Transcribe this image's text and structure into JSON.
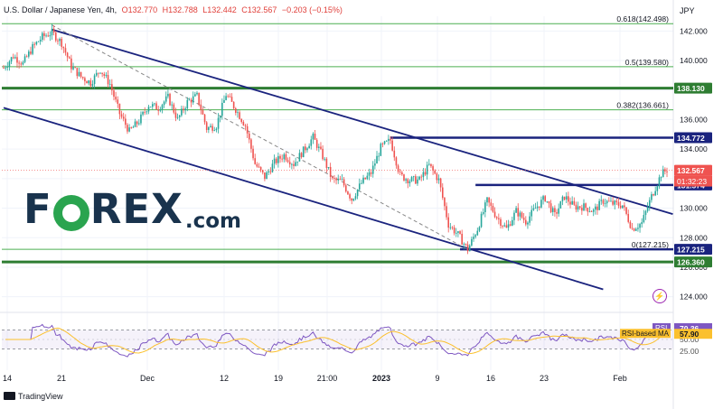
{
  "header": {
    "symbol": "U.S. Dollar / Japanese Yen, 4h,",
    "open": "O132.770",
    "high": "H132.788",
    "low": "L132.442",
    "close": "C132.567",
    "change": "−0.203 (−0.15%)"
  },
  "currency_label": "JPY",
  "logo": {
    "prefix": "F",
    "suffix": "REX",
    "domain": ".com"
  },
  "footer": {
    "brand": "TradingView"
  },
  "colors": {
    "up": "#26a69a",
    "down": "#ef5350",
    "channel": "#1a237e",
    "fib": "#4caf50",
    "rsi": "#7e57c2",
    "rsi_ma": "#fbc02d"
  },
  "chart_data": {
    "type": "candlestick",
    "symbol": "USDJPY",
    "timeframe": "4h",
    "y_axis": {
      "range": [
        123.0,
        143.0
      ],
      "ticks": [
        "142.000",
        "140.000",
        "138.000",
        "136.000",
        "134.000",
        "132.000",
        "130.000",
        "128.000",
        "126.000",
        "124.000"
      ]
    },
    "x_axis": {
      "ticks": [
        "14",
        "21",
        "Dec",
        "12",
        "19",
        "21:00",
        "2023",
        "9",
        "16",
        "23",
        "Feb"
      ]
    },
    "price_path": [
      [
        0,
        139.5
      ],
      [
        5,
        140.3
      ],
      [
        10,
        139.8
      ],
      [
        15,
        140.9
      ],
      [
        20,
        141.6
      ],
      [
        25,
        141.9
      ],
      [
        30,
        141.2
      ],
      [
        35,
        139.6
      ],
      [
        40,
        138.9
      ],
      [
        45,
        138.5
      ],
      [
        50,
        139.4
      ],
      [
        55,
        138.4
      ],
      [
        60,
        136.4
      ],
      [
        65,
        135.2
      ],
      [
        70,
        135.9
      ],
      [
        75,
        137.0
      ],
      [
        80,
        136.8
      ],
      [
        85,
        137.5
      ],
      [
        90,
        136.0
      ],
      [
        95,
        137.2
      ],
      [
        100,
        137.6
      ],
      [
        105,
        135.4
      ],
      [
        110,
        135.6
      ],
      [
        115,
        137.7
      ],
      [
        120,
        136.7
      ],
      [
        125,
        135.6
      ],
      [
        130,
        133.0
      ],
      [
        135,
        132.1
      ],
      [
        140,
        133.1
      ],
      [
        145,
        133.6
      ],
      [
        150,
        133.0
      ],
      [
        155,
        133.9
      ],
      [
        160,
        134.8
      ],
      [
        165,
        133.5
      ],
      [
        170,
        131.9
      ],
      [
        175,
        131.8
      ],
      [
        180,
        130.6
      ],
      [
        185,
        131.7
      ],
      [
        190,
        132.4
      ],
      [
        195,
        134.1
      ],
      [
        200,
        134.6
      ],
      [
        205,
        132.2
      ],
      [
        210,
        131.9
      ],
      [
        215,
        131.9
      ],
      [
        220,
        132.9
      ],
      [
        225,
        131.9
      ],
      [
        230,
        128.9
      ],
      [
        235,
        128.2
      ],
      [
        240,
        127.2
      ],
      [
        245,
        128.6
      ],
      [
        250,
        130.5
      ],
      [
        255,
        129.4
      ],
      [
        260,
        128.6
      ],
      [
        265,
        129.8
      ],
      [
        270,
        129.1
      ],
      [
        275,
        130.0
      ],
      [
        280,
        130.7
      ],
      [
        285,
        129.5
      ],
      [
        290,
        130.8
      ],
      [
        295,
        130.1
      ],
      [
        300,
        130.1
      ],
      [
        305,
        129.8
      ],
      [
        310,
        130.5
      ],
      [
        315,
        130.3
      ],
      [
        320,
        130.2
      ],
      [
        325,
        128.6
      ],
      [
        330,
        129.0
      ],
      [
        335,
        130.8
      ],
      [
        340,
        132.3
      ],
      [
        343,
        132.6
      ]
    ],
    "bar_count": 344,
    "horizontal_levels": [
      {
        "price": 138.13,
        "label": "138.130",
        "color": "#2e7d32",
        "width": 3
      },
      {
        "price": 126.36,
        "label": "126.360",
        "color": "#2e7d32",
        "width": 3
      }
    ],
    "resistance_segments": [
      {
        "price": 134.772,
        "label": "134.772",
        "from_bar": 200,
        "color": "#1a237e"
      },
      {
        "price": 131.574,
        "label": "131.574",
        "from_bar": 244,
        "color": "#1a237e"
      },
      {
        "price": 127.215,
        "label": "127.215",
        "from_bar": 236,
        "color": "#1a237e"
      }
    ],
    "fibonacci": [
      {
        "ratio": 0.618,
        "price": 142.498,
        "label": "0.618(142.498)"
      },
      {
        "ratio": 0.5,
        "price": 139.58,
        "label": "0.5(139.580)"
      },
      {
        "ratio": 0.382,
        "price": 136.661,
        "label": "0.382(136.661)"
      },
      {
        "ratio": 0,
        "price": 127.215,
        "label": "0(127.215)"
      }
    ],
    "channel": {
      "upper": [
        [
          25,
          142.1
        ],
        [
          346,
          129.6
        ]
      ],
      "lower": [
        [
          0,
          136.8
        ],
        [
          310,
          124.5
        ]
      ]
    },
    "dashed_trendline": [
      [
        25,
        142.4
      ],
      [
        240,
        127.2
      ]
    ],
    "current_price": {
      "value": "132.567",
      "countdown": "01:32:23"
    },
    "rsi": {
      "value": "70.36",
      "ma_value": "57.90",
      "label": "RSI",
      "ma_label": "RSI-based MA",
      "levels": [
        70,
        30
      ],
      "axis_ticks": [
        "75.00",
        "50.00",
        "25.00"
      ]
    }
  }
}
